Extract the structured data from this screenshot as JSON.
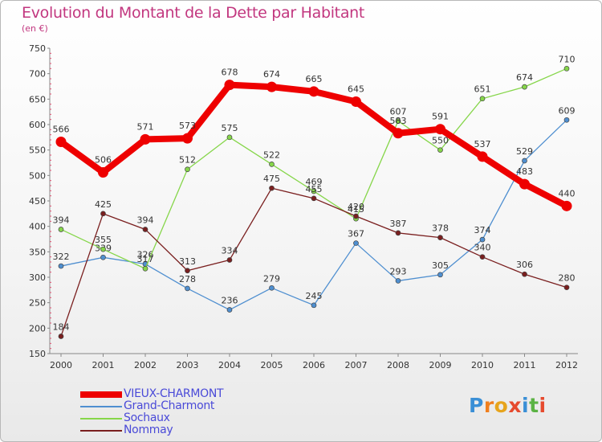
{
  "header": {
    "title": "Evolution du Montant de la Dette par Habitant",
    "subtitle": "(en €)"
  },
  "logo": {
    "text": "Proxiti",
    "colors": [
      "#3a8fd6",
      "#f07f1e",
      "#e7a41c",
      "#e64a2e",
      "#3a8fd6",
      "#5bb344",
      "#e64a2e"
    ]
  },
  "chart_data": {
    "type": "line",
    "title": "Evolution du Montant de la Dette par Habitant",
    "ylabel": "(en €)",
    "xlabel": "",
    "x": [
      "2000",
      "2001",
      "2002",
      "2003",
      "2004",
      "2005",
      "2006",
      "2007",
      "2008",
      "2009",
      "2010",
      "2011",
      "2012"
    ],
    "ylim": [
      150,
      750
    ],
    "yticks": [
      150,
      200,
      250,
      300,
      350,
      400,
      450,
      500,
      550,
      600,
      650,
      700,
      750
    ],
    "grid": false,
    "legend": "bottom-left",
    "series": [
      {
        "name": "VIEUX-CHARMONT",
        "color": "#ee0000",
        "values": [
          566,
          506,
          571,
          573,
          678,
          674,
          665,
          645,
          583,
          591,
          537,
          483,
          440
        ]
      },
      {
        "name": "Grand-Charmont",
        "color": "#4f8fd0",
        "values": [
          322,
          339,
          326,
          278,
          236,
          279,
          245,
          367,
          293,
          305,
          374,
          529,
          609
        ]
      },
      {
        "name": "Sochaux",
        "color": "#86d64a",
        "values": [
          394,
          355,
          317,
          512,
          575,
          522,
          469,
          415,
          607,
          550,
          651,
          674,
          710
        ]
      },
      {
        "name": "Nommay",
        "color": "#7a1f1f",
        "values": [
          184,
          425,
          394,
          313,
          334,
          475,
          455,
          420,
          387,
          378,
          340,
          306,
          280
        ]
      }
    ]
  }
}
